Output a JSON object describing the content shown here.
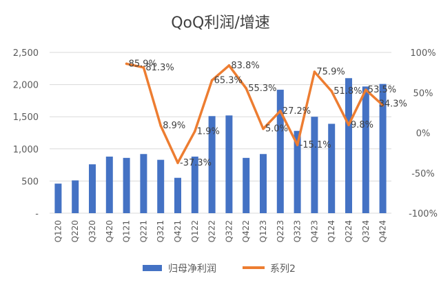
{
  "chart_data": {
    "type": "bar",
    "title": "QoQ利润/增速",
    "xlabel": "",
    "ylabel": "",
    "categories": [
      "Q120",
      "Q220",
      "Q320",
      "Q420",
      "Q121",
      "Q221",
      "Q321",
      "Q421",
      "Q122",
      "Q222",
      "Q322",
      "Q422",
      "Q123",
      "Q223",
      "Q323",
      "Q423",
      "Q124",
      "Q224",
      "Q324",
      "Q424"
    ],
    "ylim": [
      0,
      2500
    ],
    "y_ticks": [
      "-",
      "500",
      "1,000",
      "1,500",
      "2,000",
      "2,500"
    ],
    "y2lim": [
      -100,
      100
    ],
    "y2_ticks": [
      "-100%",
      "-50%",
      "0%",
      "50%",
      "100%"
    ],
    "grid": true,
    "legend_position": "bottom",
    "series": [
      {
        "name": "归母净利润",
        "kind": "bar",
        "axis": "left",
        "color": "#4472C4",
        "values": [
          460,
          510,
          760,
          880,
          860,
          920,
          830,
          550,
          880,
          1510,
          1520,
          860,
          920,
          1920,
          1280,
          1500,
          1390,
          2100,
          1970,
          2010
        ]
      },
      {
        "name": "系列2",
        "kind": "line",
        "axis": "right",
        "color": "#ED7D31",
        "values": [
          null,
          null,
          null,
          null,
          85.9,
          81.3,
          8.9,
          -37.3,
          1.9,
          65.3,
          83.8,
          55.3,
          5.0,
          27.2,
          -15.1,
          75.9,
          51.8,
          9.8,
          53.5,
          34.3
        ],
        "labels": [
          "",
          "",
          "",
          "",
          "85.9%",
          "81.3%",
          "8.9%",
          "-37.3%",
          "1.9%",
          "65.3%",
          "83.8%",
          "55.3%",
          "5.0%",
          "27.2%",
          "-15.1%",
          "75.9%",
          "51.8%",
          "9.8%",
          "53.5%",
          "34.3%"
        ]
      }
    ]
  }
}
